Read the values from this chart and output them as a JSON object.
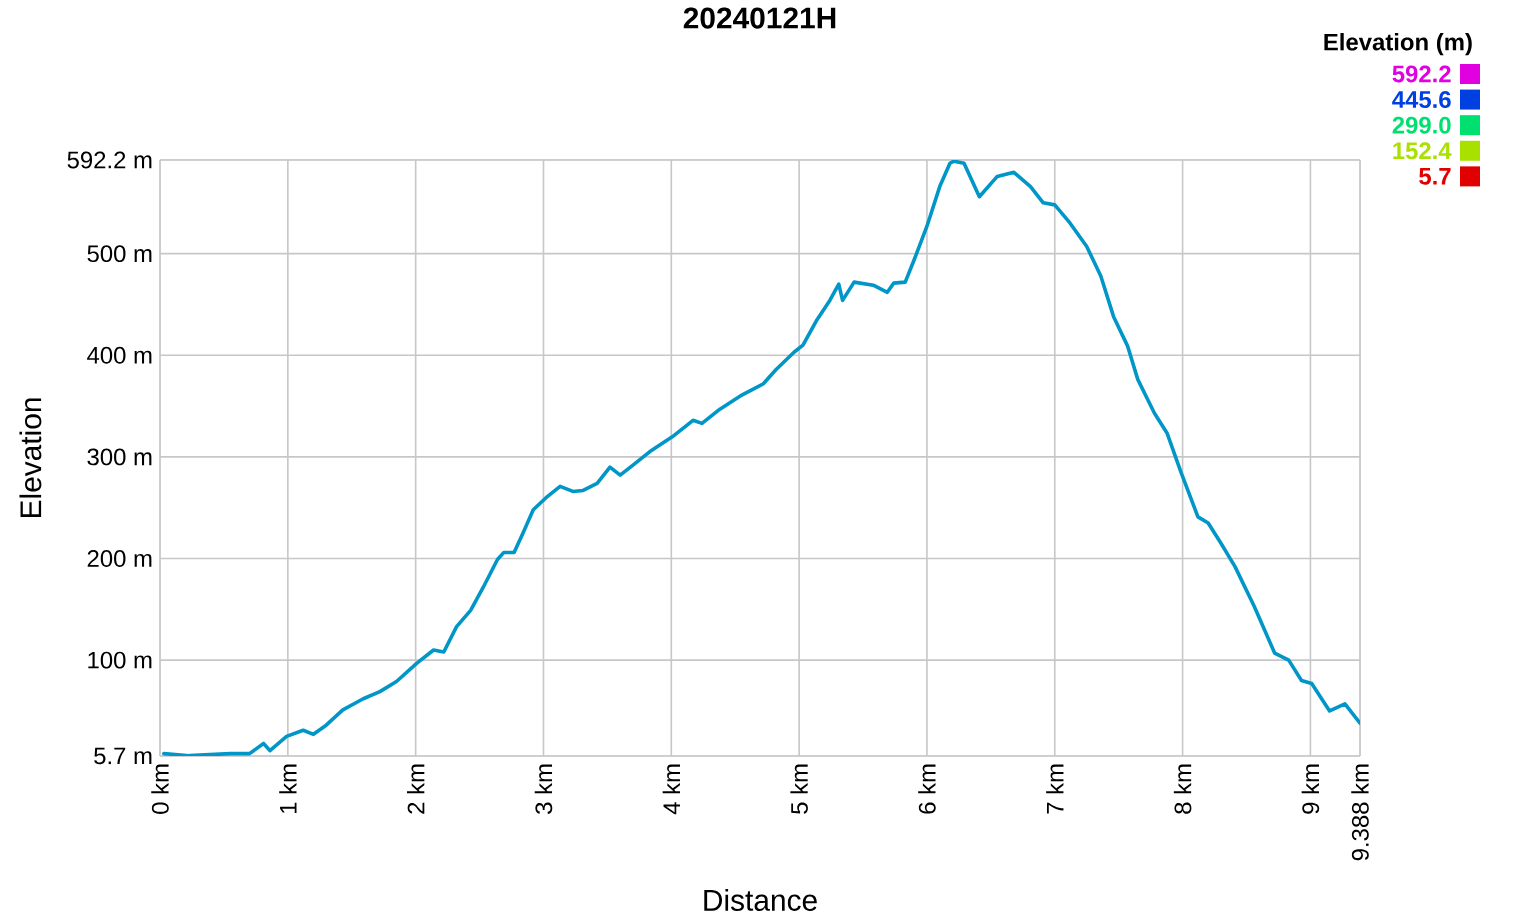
{
  "chart_data": {
    "type": "line",
    "title": "20240121H",
    "xlabel": "Distance",
    "ylabel": "Elevation",
    "clabel": "Elevation (m)",
    "x": [
      0.03,
      0.23,
      0.55,
      0.7,
      0.81,
      0.86,
      0.99,
      1.12,
      1.2,
      1.3,
      1.43,
      1.59,
      1.72,
      1.85,
      2.01,
      2.14,
      2.22,
      2.32,
      2.43,
      2.53,
      2.64,
      2.69,
      2.77,
      2.84,
      2.92,
      3.03,
      3.13,
      3.23,
      3.31,
      3.42,
      3.52,
      3.6,
      3.7,
      3.83,
      4.01,
      4.17,
      4.24,
      4.38,
      4.54,
      4.72,
      4.82,
      4.96,
      5.03,
      5.14,
      5.24,
      5.31,
      5.34,
      5.43,
      5.58,
      5.69,
      5.74,
      5.83,
      5.9,
      6.0,
      6.1,
      6.18,
      6.21,
      6.29,
      6.41,
      6.55,
      6.68,
      6.81,
      6.91,
      7.0,
      7.12,
      7.25,
      7.36,
      7.46,
      7.57,
      7.65,
      7.78,
      7.88,
      7.99,
      8.12,
      8.2,
      8.3,
      8.41,
      8.56,
      8.72,
      8.83,
      8.93,
      9.01,
      9.15,
      9.27,
      9.388
    ],
    "values": [
      8,
      6,
      8,
      8,
      18,
      11,
      25,
      31,
      27,
      36,
      51,
      62,
      69,
      79,
      97,
      110,
      108,
      133,
      149,
      172,
      199,
      206,
      206,
      225,
      248,
      261,
      271,
      266,
      267,
      274,
      290,
      282,
      292,
      305,
      320,
      336,
      333,
      347,
      360,
      372,
      386,
      403,
      410,
      435,
      454,
      470,
      454,
      472,
      469,
      462,
      471,
      472,
      494,
      527,
      566,
      589,
      591,
      589,
      556,
      576,
      580,
      566,
      550,
      548,
      530,
      507,
      478,
      438,
      409,
      376,
      343,
      323,
      284,
      241,
      235,
      215,
      192,
      153,
      107,
      100,
      80,
      77,
      50,
      57,
      38
    ],
    "xlim": [
      0,
      9.388
    ],
    "ylim": [
      5.7,
      592.2
    ],
    "xticks": [
      {
        "value": 0,
        "label": "0 km"
      },
      {
        "value": 1,
        "label": "1 km"
      },
      {
        "value": 2,
        "label": "2 km"
      },
      {
        "value": 3,
        "label": "3 km"
      },
      {
        "value": 4,
        "label": "4 km"
      },
      {
        "value": 5,
        "label": "5 km"
      },
      {
        "value": 6,
        "label": "6 km"
      },
      {
        "value": 7,
        "label": "7 km"
      },
      {
        "value": 8,
        "label": "8 km"
      },
      {
        "value": 9,
        "label": "9 km"
      },
      {
        "value": 9.388,
        "label": "9.388 km"
      }
    ],
    "yticks": [
      {
        "value": 5.7,
        "label": "5.7 m"
      },
      {
        "value": 100,
        "label": "100 m"
      },
      {
        "value": 200,
        "label": "200 m"
      },
      {
        "value": 300,
        "label": "300 m"
      },
      {
        "value": 400,
        "label": "400 m"
      },
      {
        "value": 500,
        "label": "500 m"
      },
      {
        "value": 592.2,
        "label": "592.2 m"
      }
    ],
    "clim": [
      5.7,
      592.2
    ],
    "cticks": [
      {
        "value": 592.2,
        "label": "592.2"
      },
      {
        "value": 445.6,
        "label": "445.6"
      },
      {
        "value": 299.0,
        "label": "299.0"
      },
      {
        "value": 152.4,
        "label": "152.4"
      },
      {
        "value": 5.7,
        "label": "5.7"
      }
    ],
    "grid": true
  }
}
